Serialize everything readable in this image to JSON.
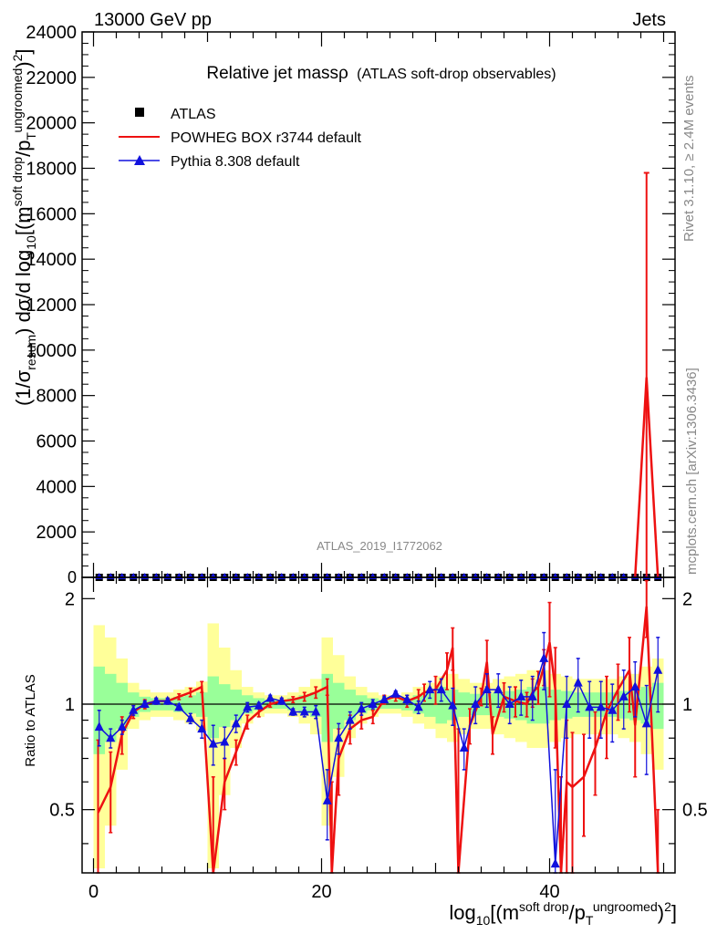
{
  "header": {
    "left": "13000 GeV pp",
    "right": "Jets"
  },
  "title": {
    "main": "Relative jet massρ",
    "sub": "(ATLAS soft-drop observables)"
  },
  "side_labels": {
    "rivet": "Rivet 3.1.10, ≥ 2.4M events",
    "mcplots": "mcplots.cern.ch [arXiv:1306.3436]"
  },
  "analysis_label": "ATLAS_2019_I1772062",
  "axis_labels": {
    "y_top": "(1/σresum) dσ/d log10[(m^soft drop/pT^ungroomed)^2]",
    "y_ratio": "Ratio to ATLAS",
    "x": "log10[(m^soft drop/pT^ungroomed)^2]"
  },
  "legend": {
    "atlas": "ATLAS",
    "powheg": "POWHEG BOX r3744 default",
    "pythia": "Pythia 8.308 default"
  },
  "colors": {
    "data": "#000000",
    "powheg": "#ee1111",
    "pythia": "#1111dd",
    "band_inner": "#99ff99",
    "band_outer": "#ffff99",
    "grey_text": "#888888"
  },
  "chart_data": {
    "type": "line",
    "x_range": [
      -1,
      51
    ],
    "top": {
      "ylim": [
        0,
        24000
      ],
      "yticks": [
        2000,
        4000,
        6000,
        8000,
        10000,
        12000,
        14000,
        16000,
        18000,
        20000,
        22000,
        24000
      ],
      "ytick_labels": [
        "2000",
        "4000",
        "6000",
        "8000",
        "10000",
        "12000",
        "14000",
        "16000",
        "18000",
        "20000",
        "22000",
        "24000"
      ],
      "zero_label": "0",
      "powheg_spike": {
        "x": [
          47.5,
          48.5,
          49.5
        ],
        "y": [
          0,
          8800,
          0
        ],
        "err_hi": 17800
      }
    },
    "ratio": {
      "ylim": [
        0.33,
        2.3
      ],
      "yticks": [
        0.5,
        1,
        2
      ],
      "ytick_labels": [
        "0.5",
        "1",
        "2"
      ],
      "xticks": [
        0,
        20,
        40
      ],
      "xtick_labels": [
        "0",
        "20",
        "40"
      ]
    },
    "bins": [
      0.5,
      1.5,
      2.5,
      3.5,
      4.5,
      5.5,
      6.5,
      7.5,
      8.5,
      9.5,
      10.5,
      11.5,
      12.5,
      13.5,
      14.5,
      15.5,
      16.5,
      17.5,
      18.5,
      19.5,
      20.5,
      21.5,
      22.5,
      23.5,
      24.5,
      25.5,
      26.5,
      27.5,
      28.5,
      29.5,
      30.5,
      31.5,
      32.5,
      33.5,
      34.5,
      35.5,
      36.5,
      37.5,
      38.5,
      39.5,
      40.5,
      41.5,
      42.5,
      43.5,
      44.5,
      45.5,
      46.5,
      47.5,
      48.5,
      49.5
    ],
    "band_inner": [
      0.28,
      0.22,
      0.15,
      0.08,
      0.05,
      0.04,
      0.04,
      0.05,
      0.06,
      0.08,
      0.2,
      0.14,
      0.1,
      0.06,
      0.04,
      0.03,
      0.03,
      0.04,
      0.06,
      0.08,
      0.22,
      0.15,
      0.1,
      0.06,
      0.04,
      0.03,
      0.03,
      0.04,
      0.06,
      0.08,
      0.12,
      0.1,
      0.08,
      0.07,
      0.07,
      0.08,
      0.09,
      0.1,
      0.12,
      0.12,
      0.1,
      0.09,
      0.08,
      0.08,
      0.08,
      0.08,
      0.09,
      0.1,
      0.12,
      0.15
    ],
    "band_outer": [
      0.68,
      0.55,
      0.35,
      0.15,
      0.1,
      0.08,
      0.08,
      0.1,
      0.12,
      0.16,
      0.7,
      0.45,
      0.25,
      0.12,
      0.08,
      0.06,
      0.06,
      0.08,
      0.12,
      0.18,
      0.55,
      0.38,
      0.2,
      0.12,
      0.08,
      0.06,
      0.06,
      0.08,
      0.12,
      0.15,
      0.2,
      0.22,
      0.18,
      0.15,
      0.15,
      0.18,
      0.2,
      0.22,
      0.25,
      0.25,
      0.22,
      0.2,
      0.18,
      0.18,
      0.18,
      0.18,
      0.2,
      0.22,
      0.28,
      0.35
    ],
    "series": [
      {
        "name": "POWHEG BOX r3744 default",
        "y": [
          0.49,
          0.58,
          0.82,
          0.95,
          1.0,
          1.02,
          1.02,
          1.05,
          1.08,
          1.12,
          0.27,
          0.6,
          0.73,
          0.89,
          0.95,
          1.0,
          1.02,
          1.03,
          1.05,
          1.08,
          1.12,
          0.2,
          0.7,
          0.85,
          0.9,
          0.92,
          1.03,
          1.05,
          1.02,
          1.05,
          1.08,
          1.1,
          1.25,
          1.45,
          0.25,
          0.87,
          1.05,
          1.32,
          0.82,
          1.05,
          1.02,
          1.0,
          1.08,
          1.12,
          1.28,
          1.5,
          1.1,
          0.32,
          0.6,
          0.58,
          0.62,
          0.75,
          0.95,
          1.1,
          1.25,
          0.87,
          1.9,
          0.25
        ],
        "x": [
          0.4,
          1.5,
          2.5,
          3.5,
          4.5,
          5.5,
          6.5,
          7.5,
          8.5,
          9.5,
          10.5,
          11.5,
          12.5,
          13.5,
          14.5,
          15.5,
          16.5,
          17.5,
          18.5,
          19.5,
          20.5,
          20.9,
          21.5,
          22.5,
          23.5,
          24.5,
          25.5,
          26.5,
          27.5,
          28.5,
          29.0,
          30.0,
          31.0,
          31.5,
          32.0,
          33.0,
          34.0,
          34.5,
          35.0,
          36.0,
          37.0,
          38.0,
          38.5,
          39.0,
          39.5,
          40.0,
          40.5,
          41.0,
          41.5,
          42.0,
          43.0,
          44.0,
          45.0,
          46.0,
          47.0,
          47.5,
          48.5,
          49.5
        ],
        "err": [
          0.3,
          0.15,
          0.1,
          0.04,
          0.03,
          0.02,
          0.02,
          0.02,
          0.03,
          0.04,
          0.35,
          0.1,
          0.06,
          0.04,
          0.03,
          0.02,
          0.02,
          0.02,
          0.03,
          0.04,
          0.06,
          0.4,
          0.15,
          0.08,
          0.05,
          0.04,
          0.03,
          0.03,
          0.04,
          0.05,
          0.06,
          0.1,
          0.15,
          0.2,
          0.6,
          0.1,
          0.06,
          0.2,
          0.1,
          0.1,
          0.1,
          0.08,
          0.1,
          0.12,
          0.15,
          0.45,
          0.35,
          0.3,
          0.3,
          0.25,
          0.2,
          0.2,
          0.25,
          0.2,
          0.3,
          0.25,
          0.35,
          0.25
        ]
      },
      {
        "name": "Pythia 8.308 default",
        "x": [
          0.5,
          1.5,
          2.5,
          3.5,
          4.5,
          5.5,
          6.5,
          7.5,
          8.5,
          9.5,
          10.5,
          11.5,
          12.5,
          13.5,
          14.5,
          15.5,
          16.5,
          17.5,
          18.5,
          19.5,
          20.5,
          21.5,
          22.5,
          23.5,
          24.5,
          25.5,
          26.5,
          27.5,
          28.5,
          29.5,
          30.5,
          31.5,
          32.5,
          33.5,
          34.5,
          35.5,
          36.5,
          37.5,
          38.5,
          39.5,
          40.5,
          41.5,
          42.5,
          43.5,
          44.5,
          45.5,
          46.5,
          47.5,
          48.5,
          49.5
        ],
        "y": [
          0.86,
          0.8,
          0.86,
          0.96,
          1.0,
          1.02,
          1.02,
          0.98,
          0.91,
          0.85,
          0.77,
          0.78,
          0.88,
          0.98,
          0.99,
          1.04,
          1.02,
          0.95,
          0.95,
          0.95,
          0.53,
          0.8,
          0.9,
          0.97,
          1.0,
          1.03,
          1.07,
          1.03,
          0.98,
          1.1,
          1.1,
          0.99,
          0.75,
          1.0,
          1.1,
          1.1,
          1.0,
          1.05,
          1.05,
          1.35,
          0.35,
          1.0,
          1.15,
          0.98,
          0.98,
          0.96,
          1.05,
          1.12,
          0.88,
          1.25
        ],
        "err": [
          0.1,
          0.05,
          0.04,
          0.03,
          0.02,
          0.02,
          0.02,
          0.02,
          0.03,
          0.05,
          0.1,
          0.08,
          0.05,
          0.03,
          0.02,
          0.02,
          0.02,
          0.02,
          0.03,
          0.04,
          0.12,
          0.08,
          0.05,
          0.04,
          0.03,
          0.02,
          0.02,
          0.03,
          0.04,
          0.06,
          0.08,
          0.12,
          0.1,
          0.12,
          0.12,
          0.12,
          0.12,
          0.12,
          0.15,
          0.25,
          0.3,
          0.2,
          0.2,
          0.18,
          0.18,
          0.18,
          0.2,
          0.2,
          0.25,
          0.3
        ]
      }
    ]
  }
}
